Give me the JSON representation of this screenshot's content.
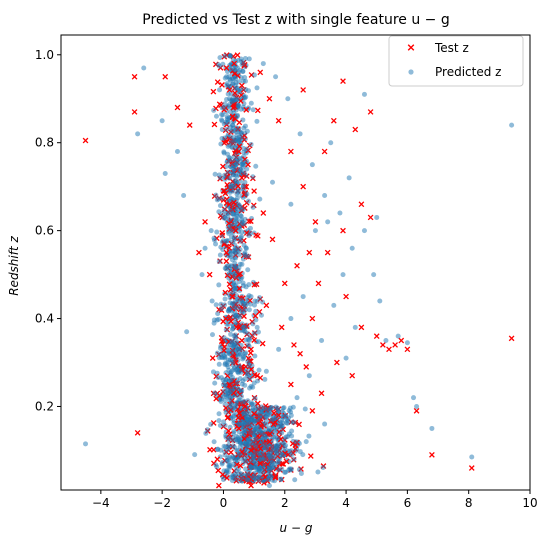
{
  "chart_data": {
    "type": "scatter",
    "title": "Predicted vs Test $z$ with single feature $u-g$",
    "title_display": "Predicted vs Test z with single feature u − g",
    "xlabel": "$u-g$",
    "xlabel_display": "u − g",
    "ylabel": "$Redshift\\ z$",
    "ylabel_display": "Redshift z",
    "xlim": [
      -5.3,
      10.0
    ],
    "ylim": [
      0.01,
      1.045
    ],
    "xticks": [
      -4,
      -2,
      0,
      2,
      4,
      6,
      8,
      10
    ],
    "xtick_labels": [
      "−4",
      "−2",
      "0",
      "2",
      "4",
      "6",
      "8",
      "10"
    ],
    "yticks": [
      0.2,
      0.4,
      0.6,
      0.8,
      1.0
    ],
    "ytick_labels": [
      "0.2",
      "0.4",
      "0.6",
      "0.8",
      "1.0"
    ],
    "grid": false,
    "legend_position": "top-right",
    "series": [
      {
        "name": "Test z",
        "marker": "x",
        "color": "#ff0000",
        "points": [
          [
            -4.5,
            0.805
          ],
          [
            -2.8,
            0.14
          ],
          [
            -2.9,
            0.87
          ],
          [
            -2.9,
            0.95
          ],
          [
            -1.9,
            0.95
          ],
          [
            -1.5,
            0.88
          ],
          [
            -1.1,
            0.84
          ],
          [
            -0.8,
            0.55
          ],
          [
            -0.6,
            0.62
          ],
          [
            -0.45,
            0.5
          ],
          [
            -0.35,
            0.31
          ],
          [
            -0.2,
            0.08
          ],
          [
            -0.15,
            0.02
          ],
          [
            0.9,
            0.02
          ],
          [
            0.1,
            0.97
          ],
          [
            0.2,
            0.92
          ],
          [
            0.3,
            0.86
          ],
          [
            0.5,
            0.78
          ],
          [
            0.6,
            0.72
          ],
          [
            0.2,
            0.66
          ],
          [
            0.4,
            0.6
          ],
          [
            0.1,
            0.55
          ],
          [
            0.5,
            0.5
          ],
          [
            0.3,
            0.45
          ],
          [
            0.2,
            0.4
          ],
          [
            0.6,
            0.35
          ],
          [
            0.4,
            0.3
          ],
          [
            0.2,
            0.25
          ],
          [
            0.7,
            0.2
          ],
          [
            0.5,
            0.15
          ],
          [
            0.9,
            0.1
          ],
          [
            1.2,
            0.07
          ],
          [
            1.5,
            0.12
          ],
          [
            1.8,
            0.18
          ],
          [
            2.2,
            0.25
          ],
          [
            2.5,
            0.32
          ],
          [
            2.9,
            0.4
          ],
          [
            3.1,
            0.48
          ],
          [
            3.4,
            0.55
          ],
          [
            3.0,
            0.62
          ],
          [
            2.6,
            0.7
          ],
          [
            2.2,
            0.78
          ],
          [
            1.8,
            0.85
          ],
          [
            1.5,
            0.9
          ],
          [
            1.2,
            0.96
          ],
          [
            3.9,
            0.6
          ],
          [
            4.0,
            0.45
          ],
          [
            4.5,
            0.38
          ],
          [
            5.0,
            0.36
          ],
          [
            5.2,
            0.34
          ],
          [
            5.4,
            0.33
          ],
          [
            5.6,
            0.34
          ],
          [
            5.8,
            0.35
          ],
          [
            6.0,
            0.33
          ],
          [
            6.3,
            0.19
          ],
          [
            6.8,
            0.09
          ],
          [
            8.1,
            0.06
          ],
          [
            9.4,
            0.355
          ],
          [
            4.5,
            0.66
          ],
          [
            4.8,
            0.63
          ],
          [
            3.6,
            0.85
          ],
          [
            4.3,
            0.83
          ],
          [
            4.8,
            0.87
          ],
          [
            3.9,
            0.94
          ],
          [
            2.6,
            0.92
          ],
          [
            3.3,
            0.78
          ],
          [
            2.8,
            0.55
          ],
          [
            2.4,
            0.52
          ],
          [
            2.0,
            0.48
          ],
          [
            1.6,
            0.58
          ],
          [
            1.3,
            0.64
          ],
          [
            1.0,
            0.69
          ],
          [
            0.8,
            0.75
          ],
          [
            1.9,
            0.38
          ],
          [
            2.3,
            0.34
          ],
          [
            2.7,
            0.29
          ],
          [
            1.1,
            0.27
          ],
          [
            0.9,
            0.33
          ],
          [
            1.4,
            0.43
          ],
          [
            3.7,
            0.3
          ],
          [
            4.2,
            0.27
          ],
          [
            3.2,
            0.23
          ],
          [
            2.9,
            0.19
          ],
          [
            1.7,
            0.04
          ],
          [
            0.35,
            0.98
          ],
          [
            0.6,
            0.93
          ]
        ]
      },
      {
        "name": "Predicted z",
        "marker": "o",
        "color": "#1f77b4",
        "alpha": 0.5,
        "points": [
          [
            -4.5,
            0.115
          ],
          [
            -2.6,
            0.97
          ],
          [
            -2.8,
            0.82
          ],
          [
            -2.0,
            0.85
          ],
          [
            -1.9,
            0.73
          ],
          [
            -1.5,
            0.78
          ],
          [
            -1.3,
            0.68
          ],
          [
            -1.2,
            0.37
          ],
          [
            -0.7,
            0.5
          ],
          [
            -0.6,
            0.56
          ],
          [
            -0.4,
            0.6
          ],
          [
            -0.2,
            0.67
          ],
          [
            -0.1,
            0.72
          ],
          [
            0.0,
            0.88
          ],
          [
            0.1,
            0.95
          ],
          [
            0.2,
            0.9
          ],
          [
            0.3,
            0.84
          ],
          [
            0.25,
            0.8
          ],
          [
            0.2,
            0.76
          ],
          [
            0.3,
            0.7
          ],
          [
            0.15,
            0.64
          ],
          [
            0.35,
            0.58
          ],
          [
            0.25,
            0.52
          ],
          [
            0.3,
            0.46
          ],
          [
            0.2,
            0.42
          ],
          [
            0.35,
            0.36
          ],
          [
            0.3,
            0.3
          ],
          [
            0.25,
            0.26
          ],
          [
            0.4,
            0.2
          ],
          [
            0.5,
            0.16
          ],
          [
            0.8,
            0.12
          ],
          [
            1.0,
            0.09
          ],
          [
            1.3,
            0.06
          ],
          [
            1.6,
            0.1
          ],
          [
            1.9,
            0.14
          ],
          [
            2.0,
            0.05
          ],
          [
            2.4,
            0.22
          ],
          [
            2.8,
            0.27
          ],
          [
            3.2,
            0.35
          ],
          [
            3.6,
            0.43
          ],
          [
            3.9,
            0.5
          ],
          [
            4.2,
            0.56
          ],
          [
            3.8,
            0.64
          ],
          [
            3.3,
            0.68
          ],
          [
            2.9,
            0.75
          ],
          [
            2.5,
            0.82
          ],
          [
            2.1,
            0.9
          ],
          [
            1.7,
            0.95
          ],
          [
            1.3,
            0.98
          ],
          [
            4.6,
            0.91
          ],
          [
            5.0,
            0.63
          ],
          [
            5.1,
            0.44
          ],
          [
            5.3,
            0.35
          ],
          [
            5.7,
            0.36
          ],
          [
            6.0,
            0.345
          ],
          [
            6.2,
            0.22
          ],
          [
            6.3,
            0.2
          ],
          [
            6.8,
            0.15
          ],
          [
            8.1,
            0.085
          ],
          [
            9.4,
            0.84
          ],
          [
            4.9,
            0.5
          ],
          [
            4.6,
            0.6
          ],
          [
            4.1,
            0.72
          ],
          [
            3.5,
            0.8
          ],
          [
            4.3,
            0.38
          ],
          [
            3.0,
            0.6
          ],
          [
            2.6,
            0.45
          ],
          [
            2.2,
            0.4
          ],
          [
            1.8,
            0.33
          ],
          [
            1.4,
            0.28
          ],
          [
            1.1,
            0.38
          ],
          [
            0.9,
            0.45
          ],
          [
            0.7,
            0.55
          ],
          [
            0.6,
            0.62
          ],
          [
            0.5,
            0.69
          ],
          [
            0.55,
            0.74
          ],
          [
            0.45,
            0.86
          ],
          [
            0.4,
            0.93
          ],
          [
            3.3,
            0.16
          ],
          [
            2.7,
            0.12
          ],
          [
            2.3,
            0.08
          ],
          [
            1.5,
            0.02
          ],
          [
            4.0,
            0.31
          ],
          [
            3.4,
            0.62
          ],
          [
            2.2,
            0.66
          ],
          [
            1.6,
            0.71
          ]
        ],
        "dense_regions": [
          {
            "x_center": 0.35,
            "x_spread": 0.25,
            "y_range": [
              0.45,
              1.0
            ]
          },
          {
            "x_center": 0.4,
            "x_spread": 0.35,
            "y_range": [
              0.2,
              0.45
            ]
          },
          {
            "x_center": 1.1,
            "x_spread": 0.6,
            "y_range": [
              0.03,
              0.2
            ]
          }
        ]
      }
    ]
  }
}
